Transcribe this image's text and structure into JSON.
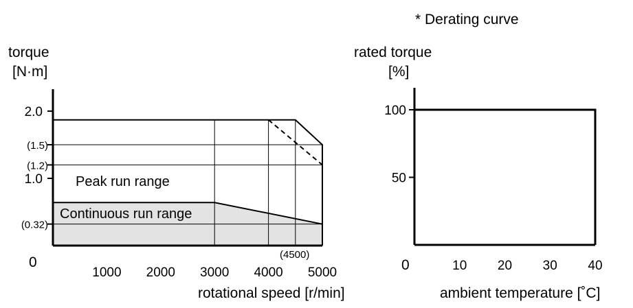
{
  "header": {
    "derating_note": "* Derating curve"
  },
  "chart_data": [
    {
      "type": "area",
      "xlabel": "rotational speed [r/min]",
      "ylabel_line1": "torque",
      "ylabel_line2": "[N·m]",
      "xlim": [
        0,
        5000
      ],
      "ylim": [
        0,
        2.4
      ],
      "origin_label": "0",
      "x_ticks": [
        {
          "value": 1000,
          "label": "1000"
        },
        {
          "value": 2000,
          "label": "2000"
        },
        {
          "value": 3000,
          "label": "3000"
        },
        {
          "value": 4000,
          "label": "4000"
        },
        {
          "value": 5000,
          "label": "5000"
        }
      ],
      "x_annotation": {
        "value": 4500,
        "label": "(4500)"
      },
      "y_ticks_major": [
        {
          "value": 2.0,
          "label": "2.0"
        },
        {
          "value": 1.0,
          "label": "1.0"
        }
      ],
      "y_ticks_minor": [
        {
          "value": 1.5,
          "label": "(1.5)"
        },
        {
          "value": 1.2,
          "label": "(1.2)"
        },
        {
          "value": 0.32,
          "label": "(0.32)"
        }
      ],
      "series": [
        {
          "name": "Peak run range",
          "points": [
            [
              0,
              1.87
            ],
            [
              4500,
              1.87
            ],
            [
              5000,
              1.5
            ],
            [
              5000,
              0
            ]
          ]
        },
        {
          "name": "Continuous run range",
          "points": [
            [
              0,
              0.64
            ],
            [
              3000,
              0.64
            ],
            [
              5000,
              0.32
            ],
            [
              5000,
              0
            ]
          ]
        },
        {
          "name": "",
          "style": "dashed",
          "points": [
            [
              4000,
              1.87
            ],
            [
              5000,
              1.2
            ]
          ]
        }
      ],
      "vertical_gridlines": [
        3000,
        4000,
        4500
      ],
      "horizontal_gridlines": [
        1.5,
        1.2
      ]
    },
    {
      "type": "line",
      "xlabel": "ambient temperature [˚C]",
      "ylabel_line1": "rated torque",
      "ylabel_line2": "[%]",
      "xlim": [
        0,
        40
      ],
      "ylim": [
        0,
        120
      ],
      "origin_label": "0",
      "x_ticks": [
        {
          "value": 10,
          "label": "10"
        },
        {
          "value": 20,
          "label": "20"
        },
        {
          "value": 30,
          "label": "30"
        },
        {
          "value": 40,
          "label": "40"
        }
      ],
      "y_ticks": [
        {
          "value": 100,
          "label": "100"
        },
        {
          "value": 50,
          "label": "50"
        }
      ],
      "series": [
        {
          "name": "",
          "points": [
            [
              0,
              100
            ],
            [
              40,
              100
            ],
            [
              40,
              0
            ]
          ]
        }
      ]
    }
  ]
}
